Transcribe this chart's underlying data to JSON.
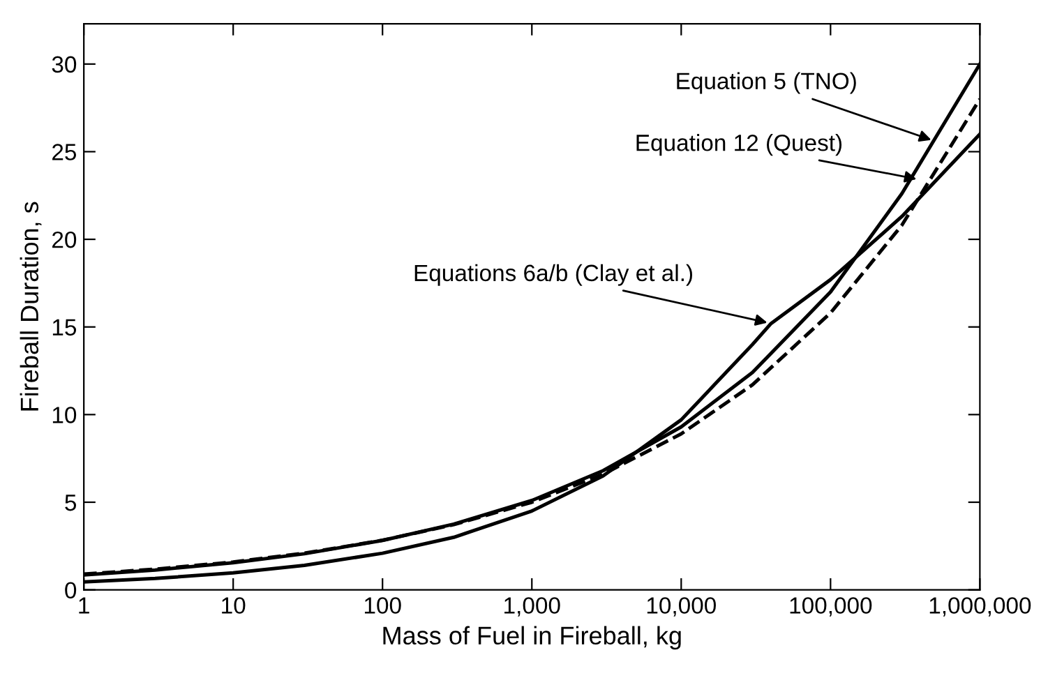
{
  "chart_data": {
    "type": "line",
    "xlabel": "Mass of Fuel in Fireball, kg",
    "ylabel": "Fireball Duration, s",
    "log": "x",
    "xlim": [
      1,
      1000000
    ],
    "ylim": [
      0,
      32.3
    ],
    "xticks": [
      1,
      10,
      100,
      {
        "value": 1000,
        "label": "1,000"
      },
      {
        "value": 10000,
        "label": "10,000"
      },
      {
        "value": 100000,
        "label": "100,000"
      },
      {
        "value": 1000000,
        "label": "1,000,000"
      }
    ],
    "yticks": [
      0,
      5,
      10,
      15,
      20,
      25,
      30
    ],
    "grid": false,
    "marker": "none",
    "series": [
      {
        "color": "#000000",
        "line_style": "solid",
        "x": [
          1,
          3,
          10,
          30,
          100,
          300,
          1000,
          3000,
          10000,
          30000,
          100000,
          300000,
          1000000
        ],
        "values": [
          0.85,
          1.13,
          1.55,
          2.06,
          2.82,
          3.75,
          5.1,
          6.8,
          9.3,
          12.4,
          17.0,
          22.6,
          30.0
        ]
      },
      {
        "color": "#000000",
        "line_style": "dashed",
        "x": [
          1,
          3,
          10,
          30,
          100,
          300,
          1000,
          3000,
          10000,
          30000,
          100000,
          300000,
          1000000
        ],
        "values": [
          0.9,
          1.18,
          1.59,
          2.09,
          2.83,
          3.72,
          5.0,
          6.6,
          8.9,
          11.7,
          15.8,
          20.8,
          28.0
        ]
      },
      {
        "color": "#000000",
        "line_style": "solid",
        "x": [
          1,
          3,
          10,
          30,
          100,
          300,
          1000,
          3000,
          10000,
          30000,
          40000,
          100000,
          300000,
          1000000
        ],
        "values": [
          0.45,
          0.65,
          0.97,
          1.4,
          2.09,
          3.0,
          4.5,
          6.5,
          9.7,
          14.0,
          15.2,
          17.7,
          21.3,
          26.0
        ]
      }
    ],
    "annotations": [
      {
        "text": "Equation 5 (TNO)",
        "x": 500000,
        "y": 25.6
      },
      {
        "text": "Equation 12 (Quest)",
        "x": 400000,
        "y": 23.4
      },
      {
        "text": "Equations 6a/b (Clay et al.)",
        "x": 40000,
        "y": 15.2
      }
    ]
  }
}
